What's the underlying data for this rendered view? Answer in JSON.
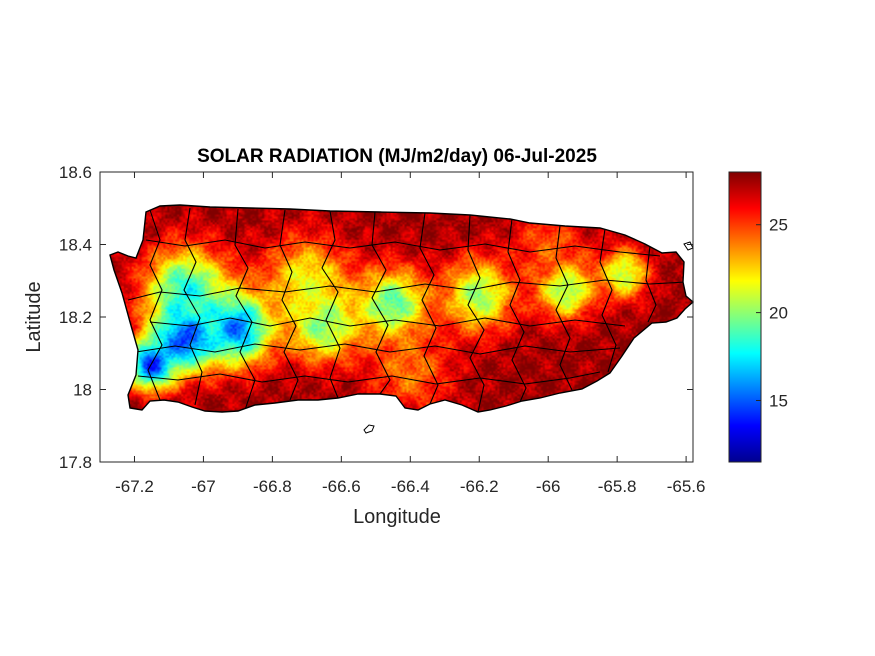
{
  "chart_data": {
    "type": "heatmap",
    "title": "SOLAR RADIATION (MJ/m2/day) 06-Jul-2025",
    "xlabel": "Longitude",
    "ylabel": "Latitude",
    "xlim": [
      -67.3,
      -65.58
    ],
    "ylim": [
      17.8,
      18.6
    ],
    "xticks": [
      -67.2,
      -67.0,
      -66.8,
      -66.6,
      -66.4,
      -66.2,
      -66.0,
      -65.8,
      -65.6
    ],
    "xtick_labels": [
      "-67.2",
      "-67",
      "-66.8",
      "-66.6",
      "-66.4",
      "-66.2",
      "-66",
      "-65.8",
      "-65.6"
    ],
    "yticks": [
      17.8,
      18.0,
      18.2,
      18.4,
      18.6
    ],
    "ytick_labels": [
      "17.8",
      "18",
      "18.2",
      "18.4",
      "18.6"
    ],
    "colorbar": {
      "range": [
        11.5,
        28
      ],
      "ticks": [
        15,
        20,
        25
      ],
      "tick_labels": [
        "15",
        "20",
        "25"
      ],
      "colormap": "jet"
    },
    "grid": false,
    "boundary_color": "#000000",
    "fields": [
      {
        "lon": -67.05,
        "lat": 18.15,
        "value": 12.5,
        "spread": 0.09
      },
      {
        "lon": -67.15,
        "lat": 18.07,
        "value": 14.0,
        "spread": 0.07
      },
      {
        "lon": -66.9,
        "lat": 18.17,
        "value": 15.0,
        "spread": 0.1
      },
      {
        "lon": -67.05,
        "lat": 18.27,
        "value": 18.0,
        "spread": 0.12
      },
      {
        "lon": -66.65,
        "lat": 18.18,
        "value": 19.0,
        "spread": 0.1
      },
      {
        "lon": -66.45,
        "lat": 18.23,
        "value": 18.5,
        "spread": 0.1
      },
      {
        "lon": -66.2,
        "lat": 18.26,
        "value": 20.0,
        "spread": 0.1
      },
      {
        "lon": -65.95,
        "lat": 18.28,
        "value": 19.0,
        "spread": 0.08
      },
      {
        "lon": -65.78,
        "lat": 18.32,
        "value": 20.5,
        "spread": 0.07
      },
      {
        "lon": -66.7,
        "lat": 18.3,
        "value": 21.5,
        "spread": 0.12
      },
      {
        "lon": -66.4,
        "lat": 18.05,
        "value": 24.0,
        "spread": 0.12
      },
      {
        "lon": -66.0,
        "lat": 18.4,
        "value": 24.5,
        "spread": 0.1
      }
    ],
    "base_value": 27.5
  }
}
